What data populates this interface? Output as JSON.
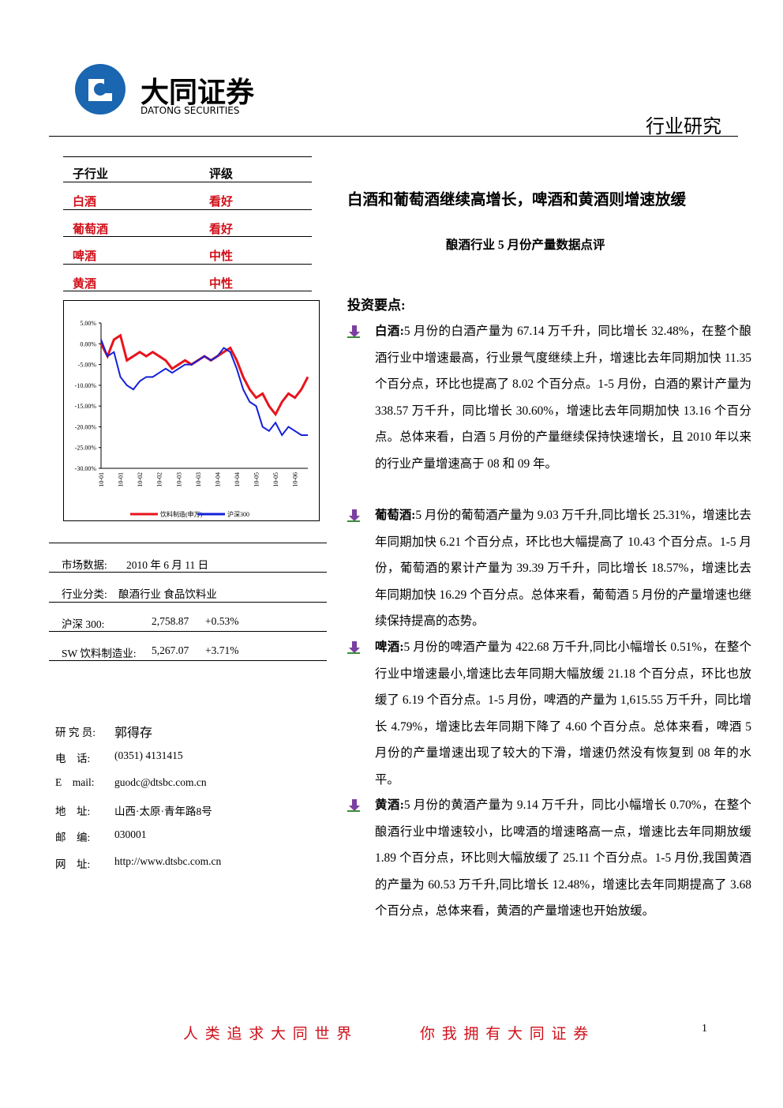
{
  "header": {
    "logo_cn": "大同证券",
    "logo_en": "DATONG SECURITIES",
    "section": "行业研究"
  },
  "ratings": {
    "columns": [
      "子行业",
      "评级"
    ],
    "rows": [
      [
        "白酒",
        "看好"
      ],
      [
        "葡萄酒",
        "看好"
      ],
      [
        "啤酒",
        "中性"
      ],
      [
        "黄酒",
        "中性"
      ]
    ]
  },
  "chart_data": {
    "type": "line",
    "categories": [
      "10-01",
      null,
      null,
      "10-01",
      null,
      null,
      "10-02",
      null,
      null,
      "10-02",
      null,
      null,
      "10-03",
      null,
      null,
      "10-03",
      null,
      null,
      "10-04",
      null,
      null,
      "10-04",
      null,
      null,
      "10-05",
      null,
      null,
      "10-05",
      null,
      null,
      "10-06",
      null,
      null
    ],
    "series": [
      {
        "name": "饮料制造(申万)",
        "color": "#e8141c",
        "values": [
          0,
          -3,
          1,
          2,
          -4,
          -3,
          -2,
          -3,
          -2,
          -3,
          -4,
          -6,
          -5,
          -4,
          -5,
          -4,
          -3,
          -4,
          -3,
          -2,
          -1,
          -4,
          -8,
          -11,
          -13,
          -12,
          -15,
          -17,
          -14,
          -12,
          -13,
          -11,
          -8
        ]
      },
      {
        "name": "沪深300",
        "color": "#1420d8",
        "values": [
          1,
          -3,
          -2,
          -8,
          -10,
          -11,
          -9,
          -8,
          -8,
          -7,
          -6,
          -7,
          -6,
          -5,
          -5,
          -4,
          -3,
          -4,
          -3,
          -1,
          -2,
          -6,
          -11,
          -14,
          -15,
          -20,
          -21,
          -19,
          -22,
          -20,
          -21,
          -22,
          -22
        ]
      }
    ],
    "ylim": [
      -30,
      5
    ],
    "yticks": [
      {
        "value": 5,
        "label": "5.00%"
      },
      {
        "value": 0,
        "label": "0.00%"
      },
      {
        "value": -5,
        "label": "-5.00%"
      },
      {
        "value": -10,
        "label": "-10.00%"
      },
      {
        "value": -15,
        "label": "-15.00%"
      },
      {
        "value": -20,
        "label": "-20.00%"
      },
      {
        "value": -25,
        "label": "-25.00%"
      },
      {
        "value": -30,
        "label": "-30.00%"
      }
    ]
  },
  "market": [
    [
      "市场数据:",
      "2010 年 6 月 11 日",
      ""
    ],
    [
      "行业分类:",
      "酿酒行业 食品饮料业",
      ""
    ],
    [
      "沪深 300:",
      "2,758.87",
      "+0.53%"
    ],
    [
      "SW 饮料制造业:",
      "5,267.07",
      "+3.71%"
    ]
  ],
  "contact": [
    [
      "研 究 员:",
      "郭得存"
    ],
    [
      "电    话:",
      "(0351) 4131415"
    ],
    [
      "E    mail:",
      "guodc@dtsbc.com.cn"
    ],
    [
      "地    址:",
      "山西·太原·青年路8号"
    ],
    [
      "邮    编:",
      "030001"
    ],
    [
      "网    址:",
      "http://www.dtsbc.com.cn"
    ]
  ],
  "main": {
    "title": "白酒和葡萄酒继续高增长，啤酒和黄酒则增速放缓",
    "subtitle": "酿酒行业 5 月份产量数据点评",
    "heading": "投资要点:",
    "bullets": [
      {
        "head": "白酒:",
        "text": "5 月份的白酒产量为 67.14 万千升，同比增长 32.48%，在整个酿酒行业中增速最高，行业景气度继续上升，增速比去年同期加快 11.35 个百分点，环比也提高了 8.02 个百分点。1-5 月份，白酒的累计产量为 338.57 万千升，同比增长 30.60%，增速比去年同期加快 13.16 个百分点。总体来看，白酒 5 月份的产量继续保持快速增长，且 2010 年以来的行业产量增速高于 08 和 09 年。"
      },
      {
        "head": "葡萄酒:",
        "text": "5 月份的葡萄酒产量为 9.03 万千升,同比增长 25.31%，增速比去年同期加快 6.21 个百分点，环比也大幅提高了 10.43 个百分点。1-5 月份，葡萄酒的累计产量为 39.39 万千升，同比增长 18.57%，增速比去年同期加快 16.29 个百分点。总体来看，葡萄酒 5 月份的产量增速也继续保持提高的态势。"
      },
      {
        "head": "啤酒:",
        "text": "5 月份的啤酒产量为 422.68 万千升,同比小幅增长 0.51%，在整个行业中增速最小,增速比去年同期大幅放缓 21.18 个百分点，环比也放缓了 6.19 个百分点。1-5 月份，啤酒的产量为 1,615.55 万千升，同比增长 4.79%，增速比去年同期下降了 4.60 个百分点。总体来看，啤酒 5 月份的产量增速出现了较大的下滑，增速仍然没有恢复到 08 年的水平。"
      },
      {
        "head": "黄酒:",
        "text": "5 月份的黄酒产量为 9.14 万千升，同比小幅增长 0.70%，在整个酿酒行业中增速较小，比啤酒的增速略高一点，增速比去年同期放缓 1.89 个百分点，环比则大幅放缓了 25.11 个百分点。1-5 月份,我国黄酒的产量为 60.53 万千升,同比增长 12.48%，增速比去年同期提高了 3.68 个百分点，总体来看，黄酒的产量增速也开始放缓。"
      }
    ]
  },
  "footer": {
    "slogan_1": "人 类 追 求 大 同 世 界",
    "slogan_2": "你 我 拥 有 大 同 证 券",
    "page": "1"
  }
}
